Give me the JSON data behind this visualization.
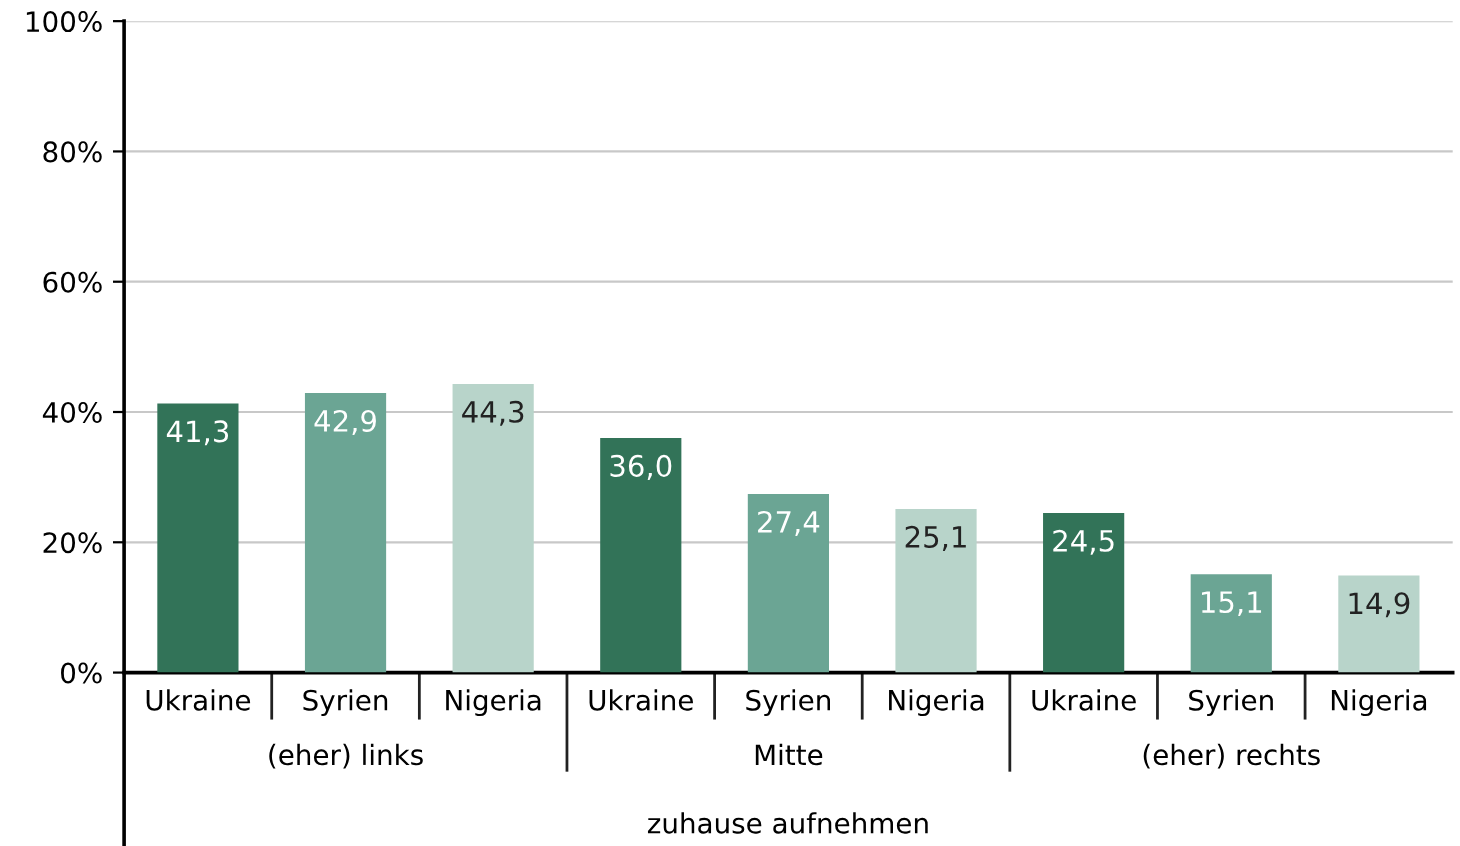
{
  "chart_data": {
    "type": "bar",
    "categories": [
      "Ukraine",
      "Syrien",
      "Nigeria",
      "Ukraine",
      "Syrien",
      "Nigeria",
      "Ukraine",
      "Syrien",
      "Nigeria"
    ],
    "values": [
      41.3,
      42.9,
      44.3,
      36.0,
      27.4,
      25.1,
      24.5,
      15.1,
      14.9
    ],
    "colors": [
      "#327358",
      "#6ba594",
      "#b8d4ca",
      "#327358",
      "#6ba594",
      "#b8d4ca",
      "#327358",
      "#6ba594",
      "#b8d4ca"
    ],
    "value_labels": [
      "41,3",
      "42,9",
      "44,3",
      "36,0",
      "27,4",
      "25,1",
      "24,5",
      "15,1",
      "14,9"
    ],
    "annotations": [
      "(eher) links",
      "Mitte",
      "(eher) rechts"
    ],
    "xlabel": "zuhause aufnehmen",
    "ylim": [
      0,
      100
    ],
    "yticks": [
      {
        "value": 0,
        "label": "0%"
      },
      {
        "value": 20,
        "label": "20%"
      },
      {
        "value": 40,
        "label": "40%"
      },
      {
        "value": 60,
        "label": "60%"
      },
      {
        "value": 80,
        "label": "80%"
      },
      {
        "value": 100,
        "label": "100%"
      }
    ],
    "grid": "y",
    "legend": false
  }
}
